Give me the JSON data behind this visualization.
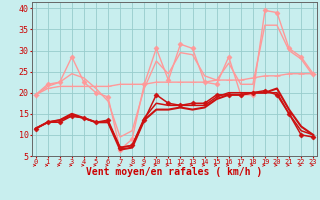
{
  "x": [
    0,
    1,
    2,
    3,
    4,
    5,
    6,
    7,
    8,
    9,
    10,
    11,
    12,
    13,
    14,
    15,
    16,
    17,
    18,
    19,
    20,
    21,
    22,
    23
  ],
  "background_color": "#c8eeee",
  "grid_color": "#98cccc",
  "xlabel": "Vent moyen/en rafales ( km/h )",
  "tick_color": "#cc0000",
  "series": [
    {
      "color": "#ff9999",
      "lw": 1.0,
      "marker": "+",
      "ms": 4,
      "marker_at": [
        0
      ],
      "values": [
        19.5,
        21,
        21.5,
        21.5,
        21.5,
        21.5,
        21.5,
        22,
        22,
        22,
        22.5,
        22.5,
        22.5,
        22.5,
        22.5,
        23,
        23,
        23,
        23.5,
        24,
        24,
        24.5,
        24.5,
        24.5
      ]
    },
    {
      "color": "#ff9999",
      "lw": 1.0,
      "marker": "D",
      "ms": 2.5,
      "marker_at": "all",
      "values": [
        19.5,
        22,
        22.5,
        28.5,
        22.5,
        20,
        19,
        6.5,
        9,
        22,
        30.5,
        23,
        31.5,
        30.5,
        22.5,
        22,
        28.5,
        19.5,
        19.5,
        39.5,
        39,
        30.5,
        28.5,
        24.5
      ]
    },
    {
      "color": "#ff9999",
      "lw": 1.0,
      "marker": null,
      "ms": 0,
      "marker_at": "none",
      "values": [
        19.5,
        21.5,
        22.5,
        24.5,
        23.5,
        21,
        18,
        9.5,
        11,
        21,
        27.5,
        24.5,
        29.5,
        29,
        24,
        23,
        27,
        22,
        22,
        36,
        36,
        30,
        28,
        24
      ]
    },
    {
      "color": "#cc1111",
      "lw": 1.1,
      "marker": "D",
      "ms": 2.5,
      "marker_at": "all",
      "values": [
        11.5,
        13,
        13,
        14.5,
        14,
        13,
        13.5,
        7,
        7.5,
        13.5,
        19.5,
        17.5,
        17,
        17.5,
        17.5,
        19.5,
        19.5,
        19.5,
        20,
        20.5,
        19.5,
        15,
        10,
        9.5
      ]
    },
    {
      "color": "#cc1111",
      "lw": 1.1,
      "marker": null,
      "ms": 0,
      "marker_at": "none",
      "values": [
        11.5,
        13,
        13.5,
        14.5,
        14,
        13,
        13,
        7,
        7.5,
        14,
        17.5,
        17,
        17,
        17,
        17,
        19,
        20,
        20,
        20,
        20,
        20,
        15,
        11,
        10
      ]
    },
    {
      "color": "#cc1111",
      "lw": 1.5,
      "marker": null,
      "ms": 0,
      "marker_at": "none",
      "values": [
        11.5,
        13,
        13.5,
        15,
        14,
        13,
        13,
        6.5,
        7,
        13.5,
        16,
        16,
        16.5,
        16,
        16.5,
        18.5,
        19.5,
        19.5,
        20,
        20,
        21,
        16,
        12,
        10
      ]
    }
  ]
}
